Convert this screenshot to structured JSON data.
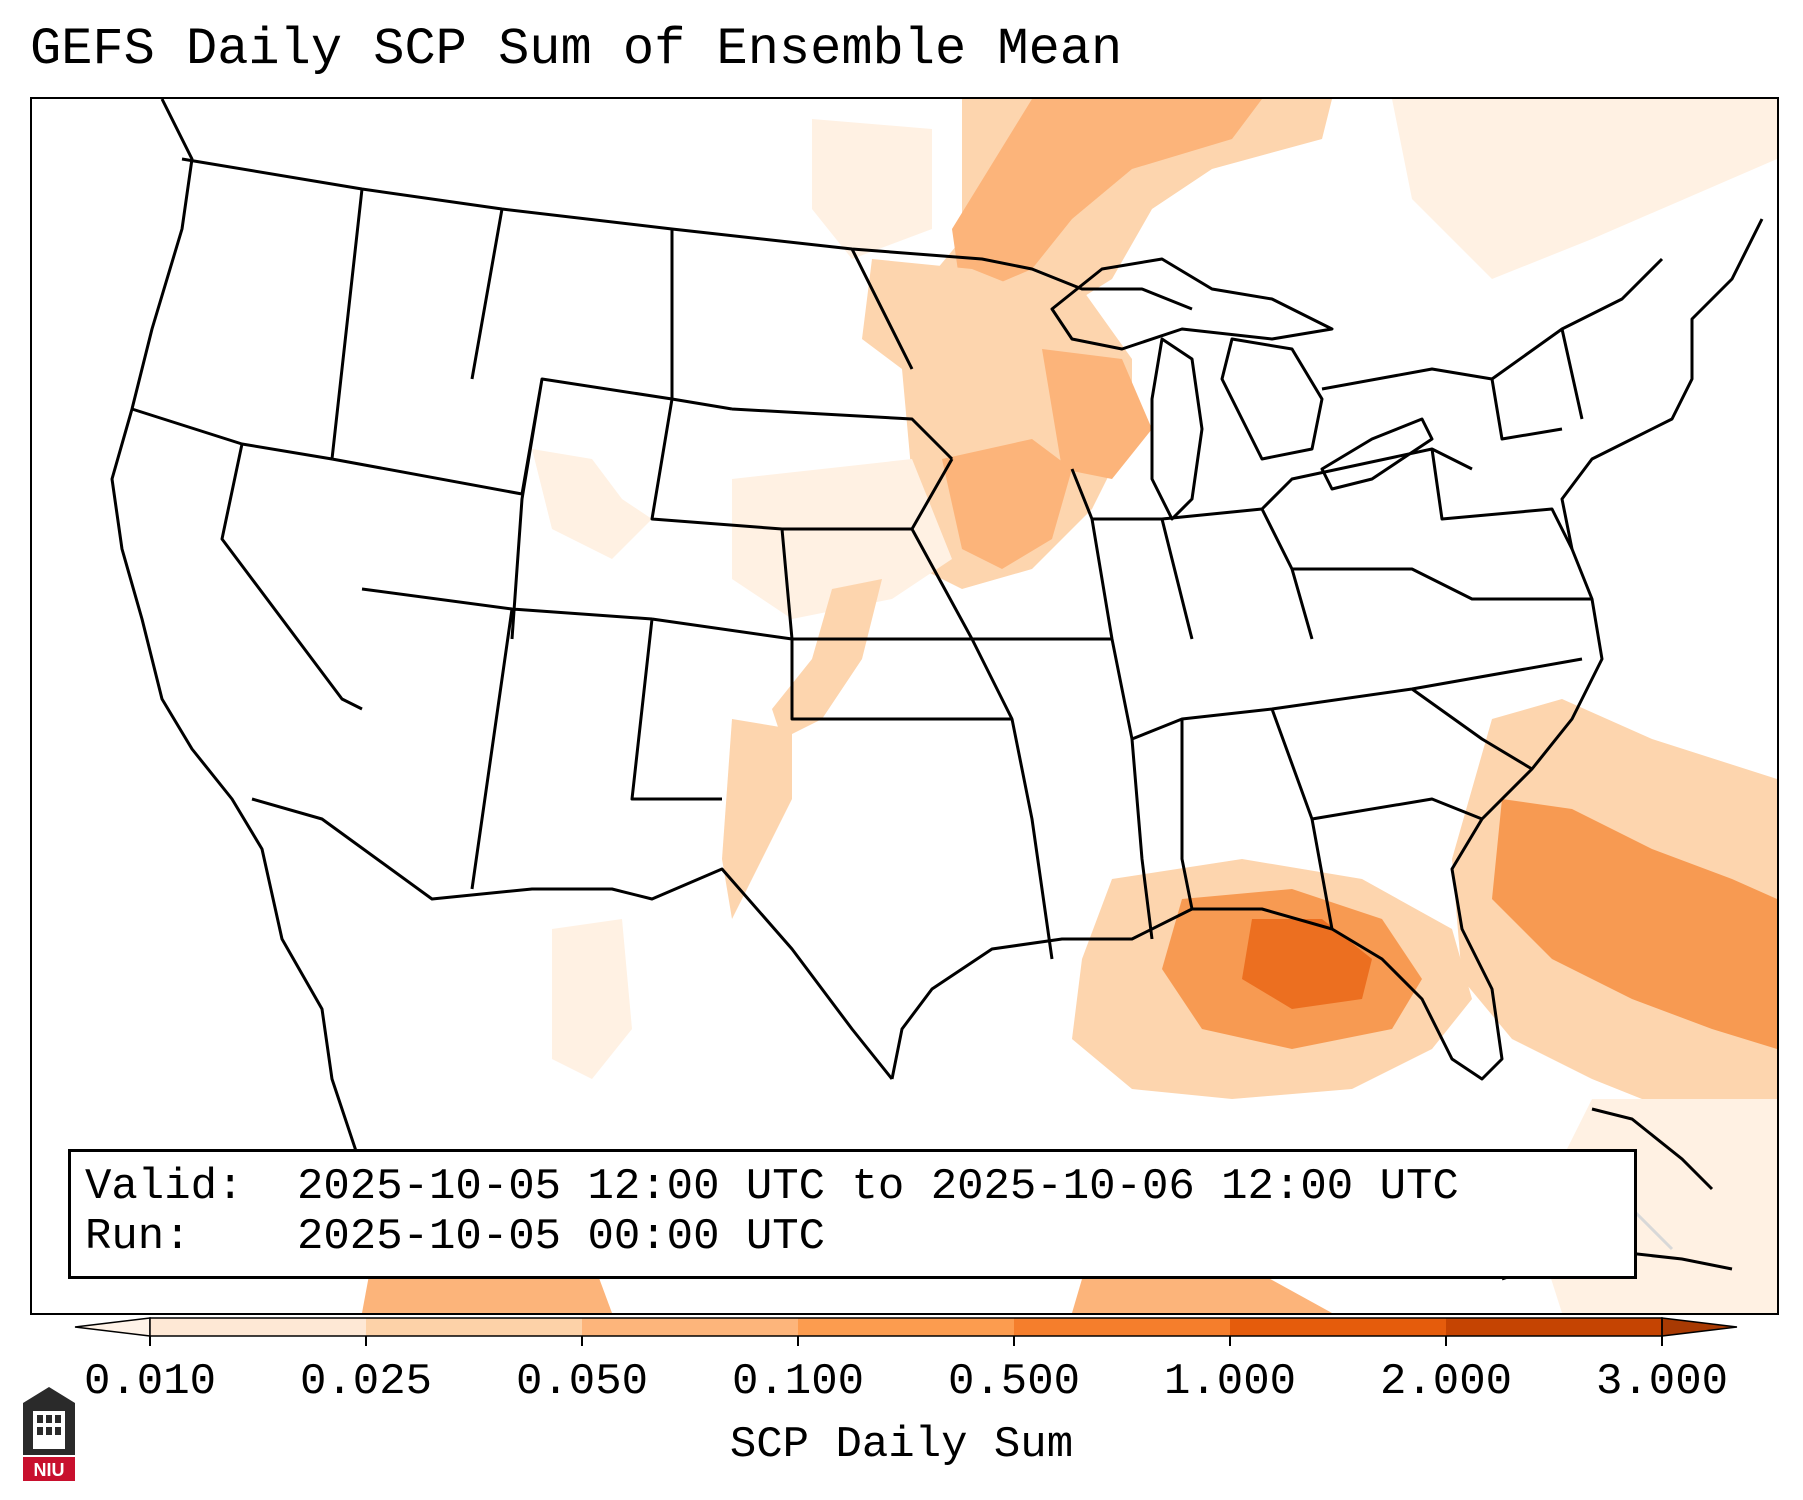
{
  "title": "GEFS Daily SCP Sum of Ensemble Mean",
  "info": {
    "valid_label": "Valid:",
    "valid_value": "2025-10-05 12:00 UTC to 2025-10-06 12:00 UTC",
    "run_label": "Run:",
    "run_value": "2025-10-05 00:00 UTC"
  },
  "colorbar": {
    "title": "SCP Daily Sum",
    "ticks": [
      "0.010",
      "0.025",
      "0.050",
      "0.100",
      "0.500",
      "1.000",
      "2.000",
      "3.000"
    ],
    "colors": [
      "#fee8d5",
      "#fdd2a8",
      "#fdb57b",
      "#fc9c4f",
      "#f57e2c",
      "#e55c0c",
      "#c54402"
    ],
    "extend_low_color": "#fff3e8",
    "extend_high_color": "#a83a03"
  },
  "logo": {
    "text": "NIU",
    "color": "#c8102e"
  },
  "map": {
    "region": "Contiguous United States",
    "field_colors": {
      "very_light": "#fff1e3",
      "light": "#fdd5ae",
      "medium": "#fcb47a",
      "strong": "#f79a52",
      "deep": "#ec6f20"
    }
  }
}
